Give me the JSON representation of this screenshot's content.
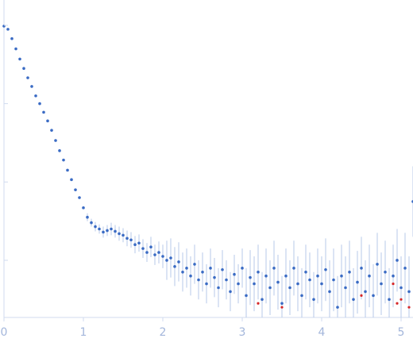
{
  "chart_data": {
    "type": "scatter",
    "x": [
      0,
      0.05,
      0.1,
      0.15,
      0.2,
      0.25,
      0.3,
      0.35,
      0.4,
      0.45,
      0.5,
      0.55,
      0.6,
      0.65,
      0.7,
      0.75,
      0.8,
      0.85,
      0.9,
      0.95,
      1.0,
      1.05,
      1.1,
      1.15,
      1.2,
      1.25,
      1.3,
      1.35,
      1.4,
      1.45,
      1.5,
      1.55,
      1.6,
      1.65,
      1.7,
      1.75,
      1.8,
      1.85,
      1.9,
      1.95,
      2.0,
      2.05,
      2.1,
      2.15,
      2.2,
      2.25,
      2.3,
      2.35,
      2.4,
      2.45,
      2.5,
      2.55,
      2.6,
      2.65,
      2.7,
      2.75,
      2.8,
      2.85,
      2.9,
      2.95,
      3.0,
      3.05,
      3.1,
      3.15,
      3.2,
      3.25,
      3.3,
      3.35,
      3.4,
      3.45,
      3.5,
      3.55,
      3.6,
      3.65,
      3.7,
      3.75,
      3.8,
      3.85,
      3.9,
      3.95,
      4.0,
      4.05,
      4.1,
      4.15,
      4.2,
      4.25,
      4.3,
      4.35,
      4.4,
      4.45,
      4.5,
      4.55,
      4.6,
      4.65,
      4.7,
      4.75,
      4.8,
      4.85,
      4.9,
      4.95,
      5.0,
      5.05,
      5.1,
      5.15
    ],
    "series": [
      {
        "color": "#3a6bc4",
        "values": [
          -0.01,
          -0.05,
          -0.17,
          -0.3,
          -0.43,
          -0.55,
          -0.67,
          -0.78,
          -0.9,
          -1.0,
          -1.11,
          -1.22,
          -1.34,
          -1.47,
          -1.6,
          -1.72,
          -1.85,
          -1.97,
          -2.1,
          -2.2,
          -2.33,
          -2.45,
          -2.52,
          -2.57,
          -2.6,
          -2.64,
          -2.62,
          -2.6,
          -2.63,
          -2.66,
          -2.68,
          -2.72,
          -2.74,
          -2.8,
          -2.78,
          -2.85,
          -2.9,
          -2.83,
          -2.93,
          -2.9,
          -2.95,
          -3.0,
          -2.97,
          -3.08,
          -3.02,
          -3.15,
          -3.1,
          -3.2,
          -3.05,
          -3.25,
          -3.15,
          -3.3,
          -3.1,
          -3.22,
          -3.35,
          -3.12,
          -3.25,
          -3.4,
          -3.18,
          -3.3,
          -3.1,
          -3.45,
          -3.22,
          -3.3,
          -3.15,
          -3.5,
          -3.2,
          -3.35,
          -3.1,
          -3.28,
          -3.55,
          -3.2,
          -3.35,
          -3.1,
          -3.3,
          -3.45,
          -3.15,
          -3.25,
          -3.5,
          -3.2,
          -3.3,
          -3.12,
          -3.4,
          -3.25,
          -3.6,
          -3.2,
          -3.35,
          -3.15,
          -3.5,
          -3.28,
          -3.1,
          -3.4,
          -3.2,
          -3.45,
          -3.05,
          -3.3,
          -3.15,
          -3.5,
          -3.2,
          -3.0,
          -3.35,
          -3.1,
          -3.4,
          -2.25
        ],
        "errors": [
          0.01,
          0.01,
          0.01,
          0.01,
          0.01,
          0.01,
          0.01,
          0.01,
          0.01,
          0.01,
          0.01,
          0.01,
          0.01,
          0.01,
          0.01,
          0.01,
          0.01,
          0.01,
          0.01,
          0.01,
          0.01,
          0.05,
          0.05,
          0.06,
          0.06,
          0.07,
          0.07,
          0.08,
          0.08,
          0.09,
          0.09,
          0.1,
          0.1,
          0.11,
          0.11,
          0.12,
          0.12,
          0.13,
          0.13,
          0.14,
          0.15,
          0.25,
          0.25,
          0.25,
          0.25,
          0.25,
          0.25,
          0.25,
          0.25,
          0.25,
          0.25,
          0.25,
          0.25,
          0.25,
          0.25,
          0.25,
          0.25,
          0.25,
          0.25,
          0.25,
          0.25,
          0.35,
          0.35,
          0.35,
          0.35,
          0.35,
          0.35,
          0.35,
          0.35,
          0.35,
          0.35,
          0.35,
          0.35,
          0.35,
          0.35,
          0.35,
          0.35,
          0.35,
          0.35,
          0.35,
          0.35,
          0.4,
          0.4,
          0.4,
          0.4,
          0.4,
          0.4,
          0.4,
          0.4,
          0.4,
          0.4,
          0.4,
          0.4,
          0.4,
          0.4,
          0.4,
          0.4,
          0.4,
          0.4,
          0.4,
          0.4,
          0.45,
          0.45,
          0.45
        ]
      }
    ],
    "outliers": {
      "color": "#d62728",
      "x": [
        3.2,
        3.5,
        4.5,
        4.9,
        4.95,
        5.0,
        5.1
      ],
      "values": [
        -3.55,
        -3.6,
        -3.45,
        -3.3,
        -3.55,
        -3.5,
        -3.6
      ]
    },
    "xlim": [
      0,
      5.15
    ],
    "xticks": [
      0,
      1,
      2,
      3,
      4,
      5
    ],
    "ylim": [
      -3.73,
      0.05
    ],
    "yticks": [
      0,
      -1,
      -2,
      -3
    ]
  }
}
